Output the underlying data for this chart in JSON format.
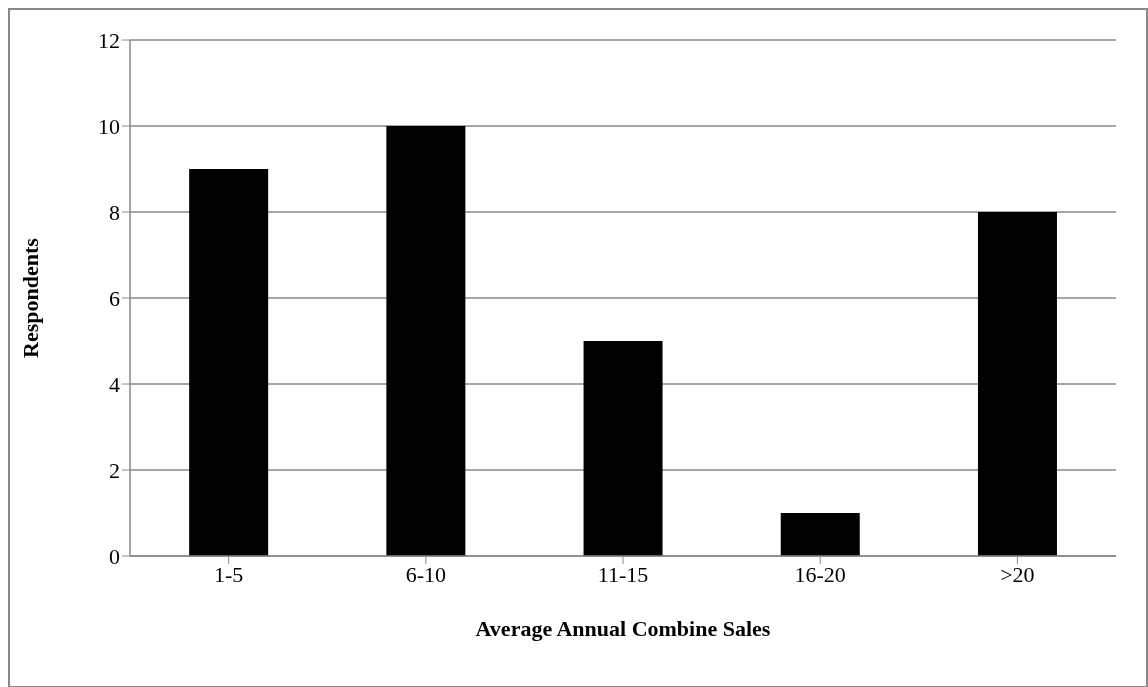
{
  "chart_data": {
    "type": "bar",
    "xlabel": "Average Annual Combine Sales",
    "ylabel": "Respondents",
    "categories": [
      "1-5",
      "6-10",
      "11-15",
      "16-20",
      ">20"
    ],
    "values": [
      9,
      10,
      5,
      1,
      8
    ],
    "color": "#000000",
    "ylim": [
      0,
      12
    ],
    "yticks": [
      0,
      2,
      4,
      6,
      8,
      10,
      12
    ],
    "grid": "y"
  }
}
